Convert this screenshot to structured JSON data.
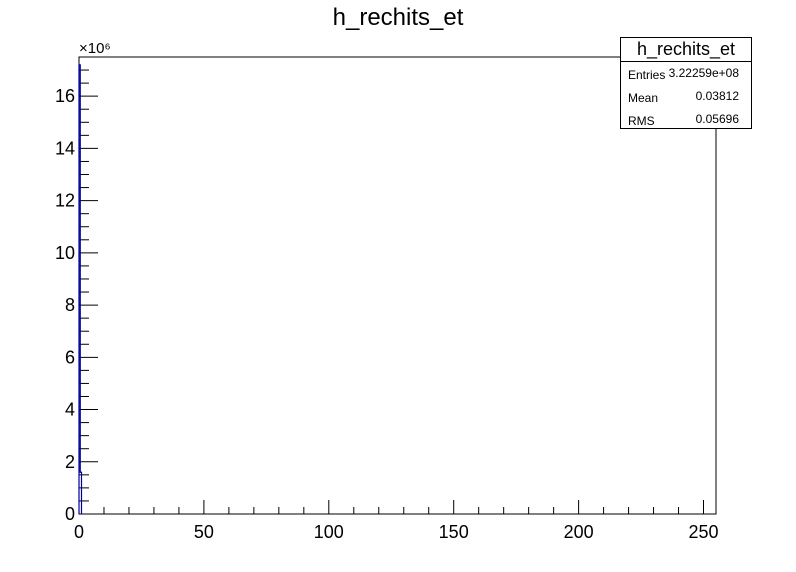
{
  "chart_data": {
    "type": "bar",
    "title": "h_rechits_et",
    "xlabel": "",
    "ylabel": "",
    "y_exponent_label": "×10⁶",
    "xlim": [
      0,
      255
    ],
    "ylim": [
      0,
      17.5
    ],
    "x_ticks": [
      0,
      50,
      100,
      150,
      200,
      250
    ],
    "y_ticks": [
      0,
      2,
      4,
      6,
      8,
      10,
      12,
      14,
      16
    ],
    "bins": [
      {
        "x0": 0,
        "x1": 0.5,
        "value": 17.2
      },
      {
        "x0": 0.5,
        "x1": 1,
        "value": 1.6
      }
    ],
    "line_color": "#000099",
    "grid": false,
    "stats": {
      "title": "h_rechits_et",
      "rows": [
        {
          "label": "Entries",
          "value": "3.22259e+08"
        },
        {
          "label": "Mean",
          "value": "0.03812"
        },
        {
          "label": "RMS",
          "value": "0.05696"
        }
      ]
    }
  }
}
